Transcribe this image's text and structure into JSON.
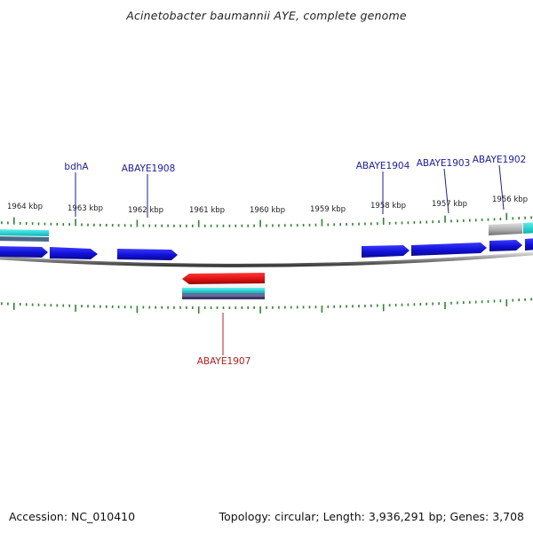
{
  "header": {
    "title": "Acinetobacter baumannii AYE, complete genome"
  },
  "footer": {
    "accession": "Accession: NC_010410",
    "summary": "Topology: circular; Length: 3,936,291 bp; Genes: 3,708"
  },
  "colors": {
    "forward_gene": "#1a1ae6",
    "reverse_gene": "#e61a1a",
    "rna": "#b4b4b4",
    "backbone": "#8c8c8c",
    "tick": "#2a8a2a",
    "label_forward": "#1a1ab4",
    "label_reverse": "#c41a1a",
    "feature_cyan": "#22cccc"
  },
  "scale": {
    "labels": [
      "1964 kbp",
      "1963 kbp",
      "1962 kbp",
      "1961 kbp",
      "1960 kbp",
      "1959 kbp",
      "1958 kbp",
      "1957 kbp",
      "1956 kbp"
    ]
  },
  "genes": {
    "labels_top": [
      "bdhA",
      "ABAYE1908",
      "ABAYE1904",
      "ABAYE1903",
      "ABAYE1902"
    ],
    "labels_bottom": [
      "ABAYE1907"
    ]
  }
}
